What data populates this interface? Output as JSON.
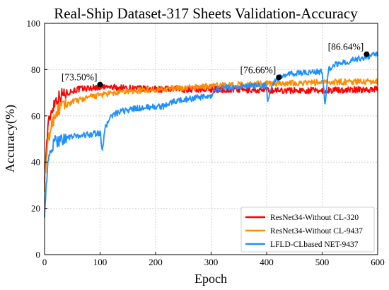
{
  "chart_data": {
    "type": "line",
    "title": "Real-Ship Dataset-317 Sheets Validation-Accuracy",
    "xlabel": "Epoch",
    "ylabel": "Accuracy(%)",
    "xlim": [
      0,
      600
    ],
    "ylim": [
      0,
      100
    ],
    "x_ticks": [
      0,
      100,
      200,
      300,
      400,
      500,
      600
    ],
    "y_ticks": [
      0,
      20,
      40,
      60,
      80,
      100
    ],
    "grid": true,
    "legend_position": "bottom-right",
    "series": [
      {
        "name": "ResNet34-Without CL-320",
        "color": "#ff0000",
        "points": [
          [
            0,
            34
          ],
          [
            3,
            45
          ],
          [
            6,
            55
          ],
          [
            10,
            60
          ],
          [
            15,
            64
          ],
          [
            20,
            67
          ],
          [
            30,
            69
          ],
          [
            40,
            70
          ],
          [
            60,
            71.5
          ],
          [
            80,
            72
          ],
          [
            100,
            72.5
          ],
          [
            150,
            72
          ],
          [
            200,
            71.5
          ],
          [
            300,
            71.5
          ],
          [
            400,
            71
          ],
          [
            500,
            71
          ],
          [
            600,
            71.5
          ]
        ],
        "noise": 1.4
      },
      {
        "name": "ResNet34-Without CL-9437",
        "color": "#ff8c00",
        "points": [
          [
            0,
            30
          ],
          [
            3,
            40
          ],
          [
            6,
            48
          ],
          [
            10,
            53
          ],
          [
            15,
            58
          ],
          [
            20,
            61
          ],
          [
            30,
            64
          ],
          [
            50,
            66
          ],
          [
            80,
            68
          ],
          [
            100,
            69
          ],
          [
            150,
            70.5
          ],
          [
            200,
            71.5
          ],
          [
            250,
            72
          ],
          [
            300,
            73
          ],
          [
            400,
            74
          ],
          [
            500,
            74.5
          ],
          [
            600,
            75
          ]
        ],
        "noise": 1.3
      },
      {
        "name": "LFLD-CLbased NET-9437",
        "color": "#1e90ff",
        "points": [
          [
            0,
            19
          ],
          [
            3,
            30
          ],
          [
            6,
            38
          ],
          [
            10,
            44
          ],
          [
            15,
            47
          ],
          [
            20,
            49
          ],
          [
            30,
            50
          ],
          [
            50,
            51
          ],
          [
            80,
            52
          ],
          [
            100,
            52.5
          ],
          [
            104,
            46
          ],
          [
            110,
            55
          ],
          [
            115,
            58
          ],
          [
            120,
            60
          ],
          [
            140,
            62
          ],
          [
            160,
            63
          ],
          [
            200,
            64
          ],
          [
            215,
            64
          ],
          [
            220,
            65
          ],
          [
            230,
            66
          ],
          [
            250,
            67
          ],
          [
            280,
            68
          ],
          [
            300,
            68
          ],
          [
            305,
            71
          ],
          [
            320,
            72
          ],
          [
            350,
            72.5
          ],
          [
            370,
            73
          ],
          [
            400,
            73
          ],
          [
            402,
            66
          ],
          [
            410,
            74
          ],
          [
            420,
            76
          ],
          [
            440,
            78
          ],
          [
            480,
            79
          ],
          [
            500,
            79
          ],
          [
            505,
            65
          ],
          [
            508,
            72
          ],
          [
            512,
            80
          ],
          [
            520,
            82
          ],
          [
            540,
            83
          ],
          [
            560,
            84.5
          ],
          [
            580,
            85.5
          ],
          [
            600,
            86.5
          ]
        ],
        "noise": 1.3
      }
    ],
    "annotations": [
      {
        "x": 100,
        "y": 73.5,
        "text": "[73.50%]"
      },
      {
        "x": 422,
        "y": 76.66,
        "text": "[76.66%]"
      },
      {
        "x": 580,
        "y": 86.64,
        "text": "[86.64%]"
      }
    ]
  }
}
